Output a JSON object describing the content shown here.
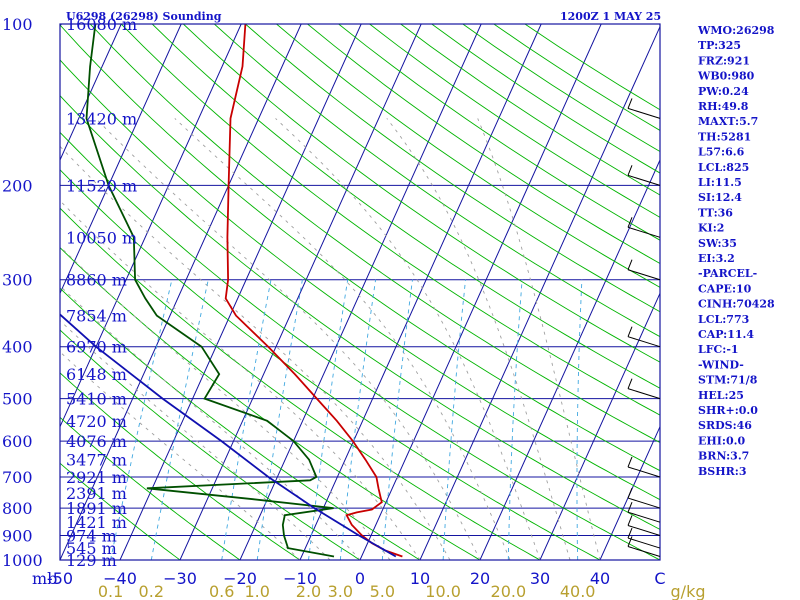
{
  "header": {
    "station": "U6298 (26298) Sounding",
    "time": "1200Z  1 MAY 25"
  },
  "indices": [
    "WMO:26298",
    "TP:325",
    "FRZ:921",
    "WB0:980",
    "PW:0.24",
    "RH:49.8",
    "MAXT:5.7",
    "TH:5281",
    "L57:6.6",
    "LCL:825",
    "LI:11.5",
    "SI:12.4",
    "TT:36",
    "KI:2",
    "SW:35",
    "EI:3.2",
    "-PARCEL-",
    "CAPE:10",
    "CINH:70428",
    "LCL:773",
    "CAP:11.4",
    "LFC:-1",
    "-WIND-",
    "STM:71/8",
    "HEL:25",
    "SHR+:0.0",
    "SRDS:46",
    "EHI:0.0",
    "BRN:3.7",
    "BSHR:3"
  ],
  "chart_data": {
    "type": "line",
    "title": "U6298 (26298) Sounding",
    "ylabel": "mb",
    "xlabel": "",
    "y_scale": "log",
    "ylim": [
      1000,
      100
    ],
    "xlim": [
      -50,
      50
    ],
    "colors": {
      "temperature": "#c80000",
      "dewpoint": "#005000",
      "parcel": "#1010b0",
      "dry_adiabat": "#00b400",
      "moist_adiabat": "#a0a0a0",
      "isotherm": "#1414a0",
      "isobar": "#1414a0",
      "mixing_ratio": "#40a8e0"
    },
    "pressure_ticks": [
      100,
      200,
      300,
      400,
      500,
      600,
      700,
      800,
      900,
      1000
    ],
    "pressure_tick_labels": [
      "100",
      "200",
      "300",
      "400",
      "500",
      "600",
      "700",
      "800",
      "900",
      "1000"
    ],
    "height_labels": [
      {
        "p": 100,
        "label": "16080 m"
      },
      {
        "p": 150,
        "label": "13420 m"
      },
      {
        "p": 200,
        "label": "11520 m"
      },
      {
        "p": 250,
        "label": "10050 m"
      },
      {
        "p": 300,
        "label": "8860 m"
      },
      {
        "p": 350,
        "label": "7854 m"
      },
      {
        "p": 400,
        "label": "6970 m"
      },
      {
        "p": 450,
        "label": "6148 m"
      },
      {
        "p": 500,
        "label": "5410 m"
      },
      {
        "p": 550,
        "label": "4720 m"
      },
      {
        "p": 600,
        "label": "4076 m"
      },
      {
        "p": 650,
        "label": "3477 m"
      },
      {
        "p": 700,
        "label": "2921 m"
      },
      {
        "p": 750,
        "label": "2391 m"
      },
      {
        "p": 800,
        "label": "1891 m"
      },
      {
        "p": 850,
        "label": "1421 m"
      },
      {
        "p": 900,
        "label": "974 m"
      },
      {
        "p": 950,
        "label": "545 m"
      },
      {
        "p": 1000,
        "label": "129 m"
      }
    ],
    "temperature_ticks": [
      -50,
      -40,
      -30,
      -20,
      -10,
      0,
      10,
      20,
      30,
      40
    ],
    "temperature_tick_labels": [
      "-50",
      "−40",
      "−30",
      "−20",
      "−10",
      "0",
      "10",
      "20",
      "30",
      "40",
      "C"
    ],
    "mixing_ratio_labels": [
      "0.1",
      "0.2",
      "0.6",
      "1.0",
      "2.0",
      "3.0",
      "5.0",
      "10.0",
      "20.0",
      "40.0",
      "g/kg"
    ],
    "mixing_ratio_values": [
      0.1,
      0.2,
      0.6,
      1.0,
      2.0,
      3.0,
      5.0,
      10.0,
      20.0,
      40.0
    ],
    "series": [
      {
        "key": "temperature",
        "points": [
          {
            "p": 985,
            "t": 6.8
          },
          {
            "p": 960,
            "t": 3.5
          },
          {
            "p": 930,
            "t": 0.7
          },
          {
            "p": 900,
            "t": -1.5
          },
          {
            "p": 860,
            "t": -4.0
          },
          {
            "p": 825,
            "t": -5.6
          },
          {
            "p": 815,
            "t": -4.1
          },
          {
            "p": 805,
            "t": -1.8
          },
          {
            "p": 780,
            "t": -0.7
          },
          {
            "p": 760,
            "t": -1.4
          },
          {
            "p": 735,
            "t": -2.3
          },
          {
            "p": 700,
            "t": -3.5
          },
          {
            "p": 650,
            "t": -6.6
          },
          {
            "p": 600,
            "t": -10.1
          },
          {
            "p": 550,
            "t": -14.3
          },
          {
            "p": 500,
            "t": -19.3
          },
          {
            "p": 450,
            "t": -24.8
          },
          {
            "p": 400,
            "t": -31.3
          },
          {
            "p": 350,
            "t": -39.0
          },
          {
            "p": 325,
            "t": -42.0
          },
          {
            "p": 300,
            "t": -43.0
          },
          {
            "p": 250,
            "t": -46.3
          },
          {
            "p": 200,
            "t": -50.0
          },
          {
            "p": 150,
            "t": -54.7
          },
          {
            "p": 120,
            "t": -56.6
          },
          {
            "p": 100,
            "t": -59.3
          }
        ]
      },
      {
        "key": "dewpoint",
        "points": [
          {
            "p": 985,
            "t": -4.6
          },
          {
            "p": 950,
            "t": -12.9
          },
          {
            "p": 900,
            "t": -14.5
          },
          {
            "p": 860,
            "t": -15.5
          },
          {
            "p": 825,
            "t": -15.9
          },
          {
            "p": 800,
            "t": -8.3
          },
          {
            "p": 770,
            "t": -22.4
          },
          {
            "p": 735,
            "t": -40.9
          },
          {
            "p": 710,
            "t": -14.3
          },
          {
            "p": 700,
            "t": -13.5
          },
          {
            "p": 650,
            "t": -16.0
          },
          {
            "p": 600,
            "t": -20.0
          },
          {
            "p": 550,
            "t": -25.9
          },
          {
            "p": 500,
            "t": -38.0
          },
          {
            "p": 450,
            "t": -37.4
          },
          {
            "p": 400,
            "t": -42.4
          },
          {
            "p": 350,
            "t": -52.2
          },
          {
            "p": 325,
            "t": -55.4
          },
          {
            "p": 300,
            "t": -58.5
          },
          {
            "p": 250,
            "t": -61.9
          },
          {
            "p": 200,
            "t": -70.0
          },
          {
            "p": 150,
            "t": -78.7
          },
          {
            "p": 120,
            "t": -82.0
          },
          {
            "p": 100,
            "t": -84.3
          }
        ]
      },
      {
        "key": "parcel",
        "points": [
          {
            "p": 985,
            "t": 5.7
          },
          {
            "p": 900,
            "t": -2.0
          },
          {
            "p": 800,
            "t": -11.5
          },
          {
            "p": 700,
            "t": -21.5
          },
          {
            "p": 600,
            "t": -32.0
          },
          {
            "p": 500,
            "t": -45.0
          },
          {
            "p": 400,
            "t": -60.0
          },
          {
            "p": 300,
            "t": -77.5
          },
          {
            "p": 200,
            "t": -99.0
          },
          {
            "p": 150,
            "t": -113.0
          },
          {
            "p": 120,
            "t": -123.0
          }
        ]
      }
    ],
    "wind_barbs": [
      {
        "p": 985
      },
      {
        "p": 950
      },
      {
        "p": 900
      },
      {
        "p": 850
      },
      {
        "p": 800
      },
      {
        "p": 700
      },
      {
        "p": 500
      },
      {
        "p": 400
      },
      {
        "p": 300
      },
      {
        "p": 250
      },
      {
        "p": 200
      },
      {
        "p": 150
      }
    ]
  }
}
